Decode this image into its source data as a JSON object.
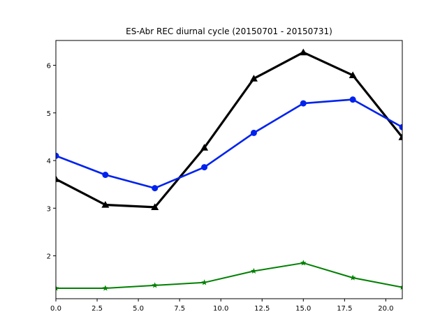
{
  "chart_data": {
    "type": "line",
    "title": "ES-Abr REC diurnal cycle (20150701 - 20150731)",
    "xlabel": "",
    "ylabel": "",
    "xlim": [
      0,
      21
    ],
    "ylim": [
      1.1,
      6.52
    ],
    "xticks": [
      0.0,
      2.5,
      5.0,
      7.5,
      10.0,
      12.5,
      15.0,
      17.5,
      20.0
    ],
    "xtick_labels": [
      "0.0",
      "2.5",
      "5.0",
      "7.5",
      "10.0",
      "12.5",
      "15.0",
      "17.5",
      "20.0"
    ],
    "yticks": [
      2,
      3,
      4,
      5,
      6
    ],
    "ytick_labels": [
      "2",
      "3",
      "4",
      "5",
      "6"
    ],
    "grid": false,
    "x": [
      0,
      3,
      6,
      9,
      12,
      15,
      18,
      21
    ],
    "series": [
      {
        "color": "#000000",
        "marker": "triangle",
        "values": [
          3.61,
          3.07,
          3.02,
          4.27,
          5.72,
          6.27,
          5.79,
          4.49
        ]
      },
      {
        "color": "#0022ee",
        "marker": "circle",
        "values": [
          4.1,
          3.7,
          3.42,
          3.86,
          4.58,
          5.2,
          5.28,
          4.7
        ]
      },
      {
        "color": "#008000",
        "marker": "star",
        "values": [
          1.32,
          1.32,
          1.38,
          1.44,
          1.68,
          1.85,
          1.54,
          1.34
        ]
      }
    ]
  }
}
